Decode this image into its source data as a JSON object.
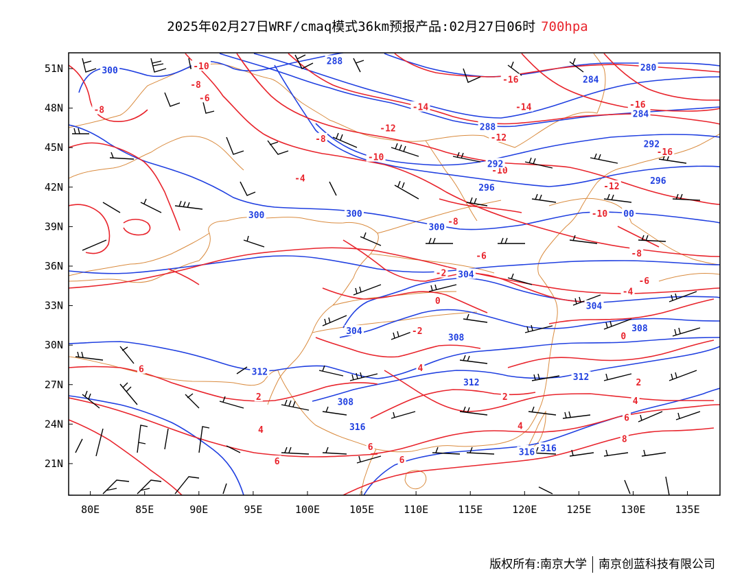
{
  "title": {
    "main": "2025年02月27日WRF/cmaq模式36km预报产品:02月27日06时",
    "level": "700hpa"
  },
  "map": {
    "lat_ticks": [
      "51N",
      "48N",
      "45N",
      "42N",
      "39N",
      "36N",
      "33N",
      "30N",
      "27N",
      "24N",
      "21N"
    ],
    "lon_ticks": [
      "80E",
      "85E",
      "90E",
      "95E",
      "100E",
      "105E",
      "110E",
      "115E",
      "120E",
      "125E",
      "130E",
      "135E"
    ],
    "temperature_labels": [
      {
        "text": "-10",
        "lon": 90.2,
        "lat": 51.2
      },
      {
        "text": "-8",
        "lon": 89.7,
        "lat": 49.8
      },
      {
        "text": "-6",
        "lon": 90.5,
        "lat": 48.8
      },
      {
        "text": "-8",
        "lon": 80.8,
        "lat": 47.9
      },
      {
        "text": "-8",
        "lon": 101.2,
        "lat": 45.7
      },
      {
        "text": "-10",
        "lon": 106.3,
        "lat": 44.3
      },
      {
        "text": "-12",
        "lon": 107.4,
        "lat": 46.5
      },
      {
        "text": "-14",
        "lon": 110.4,
        "lat": 48.1
      },
      {
        "text": "-16",
        "lon": 118.7,
        "lat": 50.2
      },
      {
        "text": "-14",
        "lon": 119.9,
        "lat": 48.1
      },
      {
        "text": "-12",
        "lon": 117.6,
        "lat": 45.8
      },
      {
        "text": "-16",
        "lon": 130.4,
        "lat": 48.3
      },
      {
        "text": "-16",
        "lon": 132.9,
        "lat": 44.7
      },
      {
        "text": "-12",
        "lon": 128.0,
        "lat": 42.1
      },
      {
        "text": "-10",
        "lon": 117.7,
        "lat": 43.3
      },
      {
        "text": "-10",
        "lon": 126.9,
        "lat": 40.0
      },
      {
        "text": "-8",
        "lon": 113.4,
        "lat": 39.4
      },
      {
        "text": "-6",
        "lon": 116.0,
        "lat": 36.8
      },
      {
        "text": "-4",
        "lon": 99.3,
        "lat": 42.7
      },
      {
        "text": "-2",
        "lon": 112.3,
        "lat": 35.5
      },
      {
        "text": "0",
        "lon": 112.0,
        "lat": 33.4
      },
      {
        "text": "-2",
        "lon": 110.1,
        "lat": 31.1
      },
      {
        "text": "-8",
        "lon": 130.3,
        "lat": 37.0
      },
      {
        "text": "-6",
        "lon": 131.0,
        "lat": 34.9
      },
      {
        "text": "-4",
        "lon": 129.5,
        "lat": 34.1
      },
      {
        "text": "0",
        "lon": 129.1,
        "lat": 30.7
      },
      {
        "text": "4",
        "lon": 110.4,
        "lat": 28.3
      },
      {
        "text": "2",
        "lon": 118.2,
        "lat": 26.1
      },
      {
        "text": "2",
        "lon": 130.5,
        "lat": 27.2
      },
      {
        "text": "4",
        "lon": 130.2,
        "lat": 25.8
      },
      {
        "text": "4",
        "lon": 119.6,
        "lat": 23.9
      },
      {
        "text": "6",
        "lon": 129.4,
        "lat": 24.5
      },
      {
        "text": "8",
        "lon": 129.2,
        "lat": 22.9
      },
      {
        "text": "6",
        "lon": 120.0,
        "lat": 22.0
      },
      {
        "text": "6",
        "lon": 84.7,
        "lat": 28.2
      },
      {
        "text": "2",
        "lon": 95.5,
        "lat": 26.1
      },
      {
        "text": "4",
        "lon": 95.7,
        "lat": 23.6
      },
      {
        "text": "6",
        "lon": 97.2,
        "lat": 21.2
      },
      {
        "text": "6",
        "lon": 105.8,
        "lat": 22.3
      },
      {
        "text": "6",
        "lon": 108.7,
        "lat": 21.3
      }
    ],
    "height_labels": [
      {
        "text": "300",
        "lon": 81.8,
        "lat": 50.9
      },
      {
        "text": "288",
        "lon": 102.5,
        "lat": 51.6
      },
      {
        "text": "300",
        "lon": 95.3,
        "lat": 39.9
      },
      {
        "text": "300",
        "lon": 104.3,
        "lat": 40.0
      },
      {
        "text": "300",
        "lon": 111.9,
        "lat": 39.0
      },
      {
        "text": "304",
        "lon": 114.6,
        "lat": 35.4
      },
      {
        "text": "304",
        "lon": 126.4,
        "lat": 33.0
      },
      {
        "text": "304",
        "lon": 104.3,
        "lat": 31.1
      },
      {
        "text": "308",
        "lon": 113.7,
        "lat": 30.6
      },
      {
        "text": "308",
        "lon": 130.6,
        "lat": 31.3
      },
      {
        "text": "312",
        "lon": 95.6,
        "lat": 28.0
      },
      {
        "text": "312",
        "lon": 115.1,
        "lat": 27.2
      },
      {
        "text": "312",
        "lon": 125.2,
        "lat": 27.6
      },
      {
        "text": "308",
        "lon": 103.5,
        "lat": 25.7
      },
      {
        "text": "316",
        "lon": 104.6,
        "lat": 23.8
      },
      {
        "text": "316",
        "lon": 120.2,
        "lat": 21.9
      },
      {
        "text": "316",
        "lon": 122.2,
        "lat": 22.2
      },
      {
        "text": "280",
        "lon": 131.4,
        "lat": 51.1
      },
      {
        "text": "284",
        "lon": 126.1,
        "lat": 50.2
      },
      {
        "text": "284",
        "lon": 130.7,
        "lat": 47.6
      },
      {
        "text": "288",
        "lon": 116.6,
        "lat": 46.6
      },
      {
        "text": "292",
        "lon": 131.7,
        "lat": 45.3
      },
      {
        "text": "292",
        "lon": 117.3,
        "lat": 43.8
      },
      {
        "text": "296",
        "lon": 132.3,
        "lat": 42.5
      },
      {
        "text": "296",
        "lon": 116.5,
        "lat": 42.0
      },
      {
        "text": "00",
        "lon": 129.6,
        "lat": 40.0
      }
    ],
    "colors": {
      "temperature": "#e8232b",
      "height": "#1f3fe0",
      "boundary": "#d98a3d",
      "wind": "#000000"
    }
  },
  "footer": {
    "copyright": "版权所有:南京大学",
    "company": "南京创蓝科技有限公司"
  }
}
